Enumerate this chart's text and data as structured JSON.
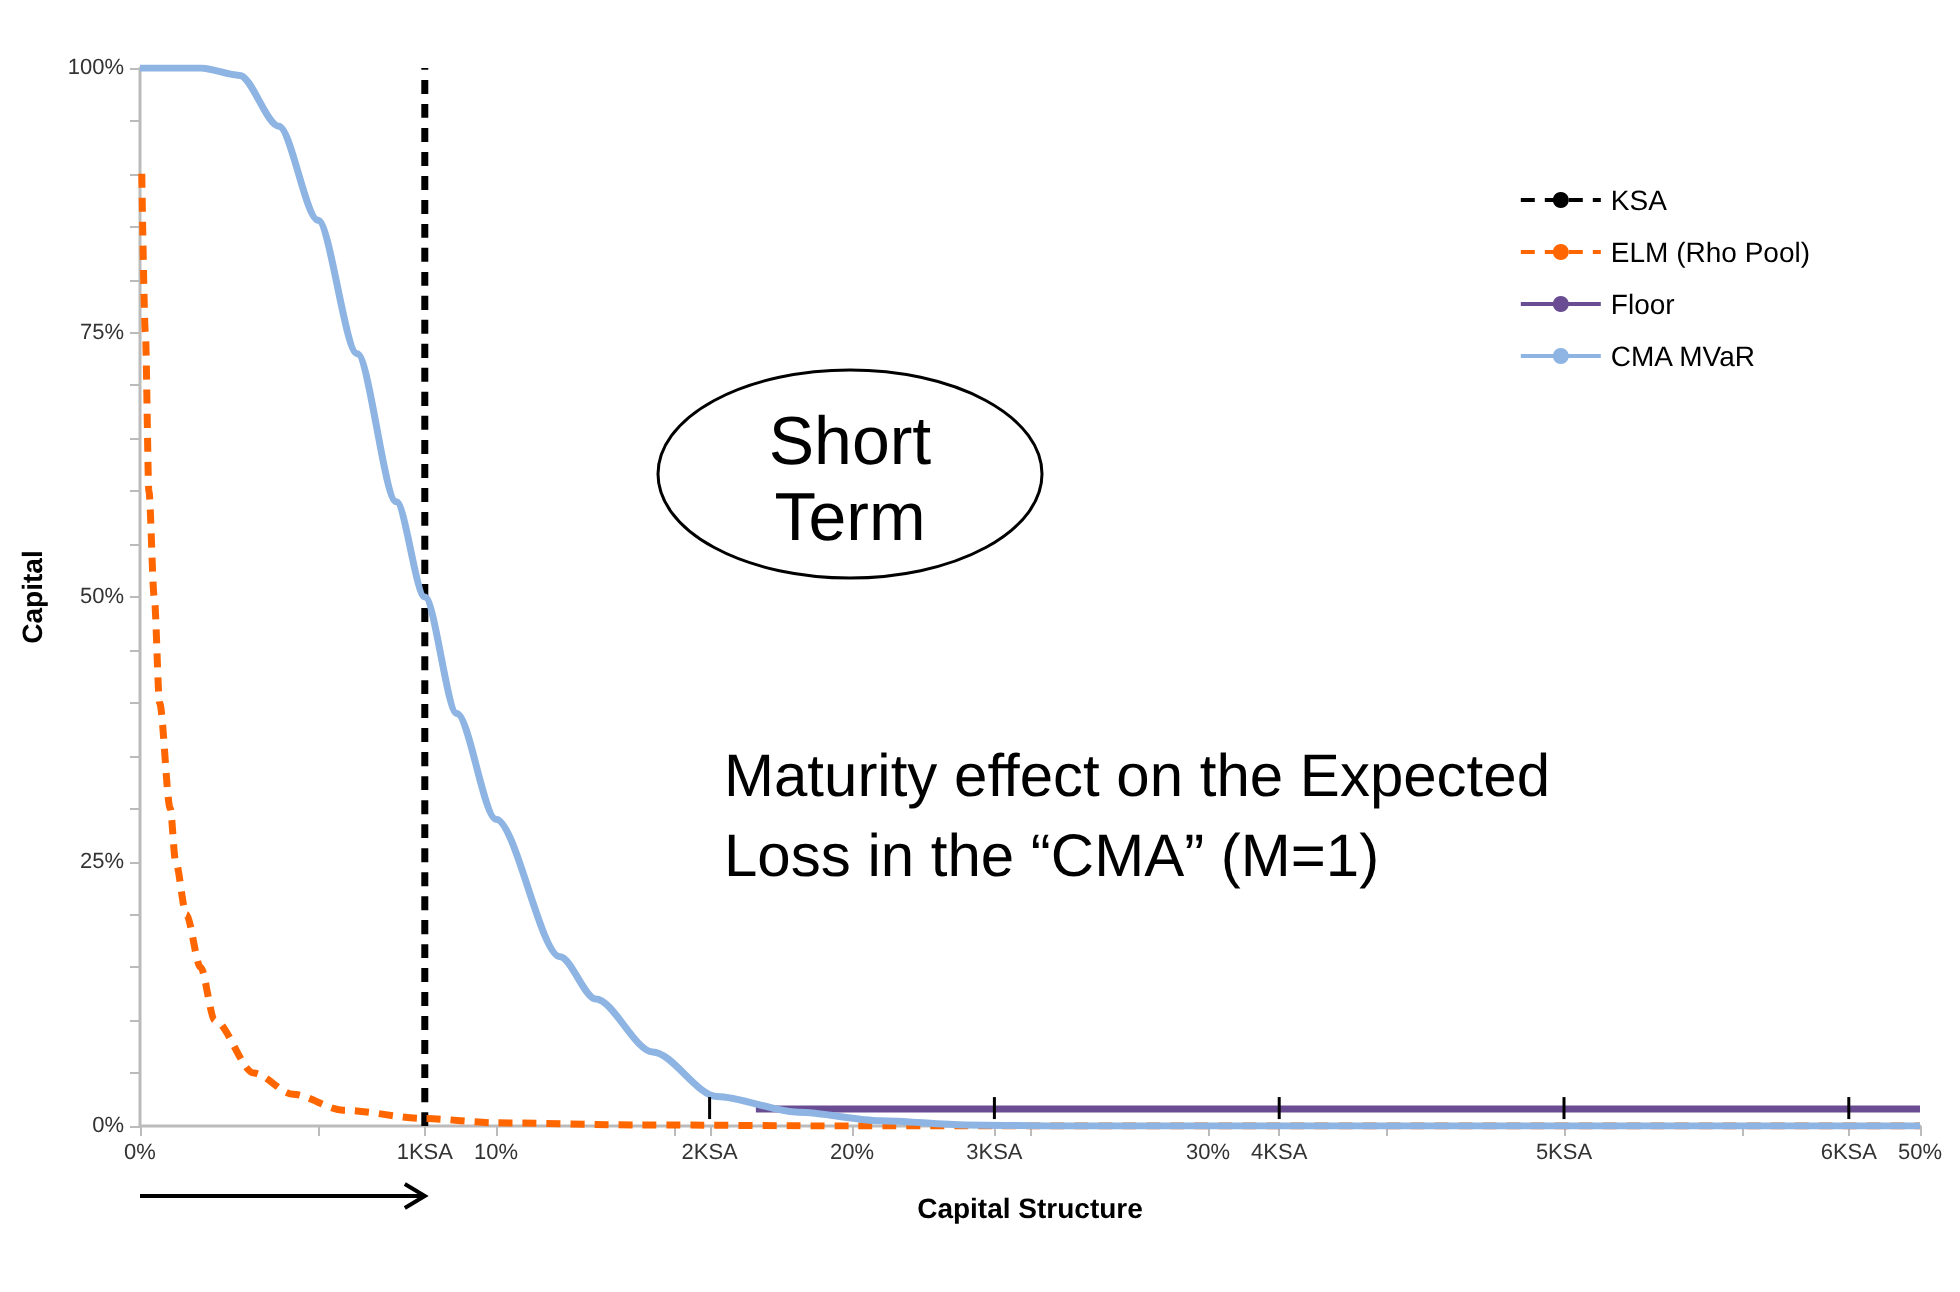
{
  "chart_data": {
    "type": "line",
    "xlabel": "Capital Structure",
    "ylabel": "Capital",
    "annotations": [
      "Short Term",
      "Maturity effect on the Expected Loss in the “CMA” (M=1)"
    ],
    "xlim": [
      0,
      50
    ],
    "xticks": [
      {
        "value": 0,
        "label": "0%"
      },
      {
        "value": 5,
        "label": null
      },
      {
        "value": 10,
        "label": "10%"
      },
      {
        "value": 15,
        "label": null
      },
      {
        "value": 20,
        "label": "20%"
      },
      {
        "value": 25,
        "label": null
      },
      {
        "value": 30,
        "label": "30%"
      },
      {
        "value": 35,
        "label": null
      },
      {
        "value": 40,
        "label": null
      },
      {
        "value": 45,
        "label": null
      },
      {
        "value": 50,
        "label": "50%"
      }
    ],
    "x2lim": [
      0,
      6.25
    ],
    "x2ticks": [
      {
        "value": 1,
        "label": "1KSA"
      },
      {
        "value": 2,
        "label": "2KSA"
      },
      {
        "value": 3,
        "label": "3KSA"
      },
      {
        "value": 4,
        "label": "4KSA"
      },
      {
        "value": 5,
        "label": "5KSA"
      },
      {
        "value": 6,
        "label": "6KSA"
      }
    ],
    "ylim": [
      0,
      100
    ],
    "yticks": [
      {
        "value": 0,
        "label": "0%"
      },
      {
        "value": 5,
        "label": null
      },
      {
        "value": 10,
        "label": null
      },
      {
        "value": 15,
        "label": null
      },
      {
        "value": 20,
        "label": null
      },
      {
        "value": 25,
        "label": "25%"
      },
      {
        "value": 30,
        "label": null
      },
      {
        "value": 35,
        "label": null
      },
      {
        "value": 40,
        "label": null
      },
      {
        "value": 45,
        "label": null
      },
      {
        "value": 50,
        "label": "50%"
      },
      {
        "value": 55,
        "label": null
      },
      {
        "value": 60,
        "label": null
      },
      {
        "value": 65,
        "label": null
      },
      {
        "value": 70,
        "label": null
      },
      {
        "value": 75,
        "label": "75%"
      },
      {
        "value": 80,
        "label": null
      },
      {
        "value": 85,
        "label": null
      },
      {
        "value": 90,
        "label": null
      },
      {
        "value": 95,
        "label": null
      },
      {
        "value": 100,
        "label": "100%"
      }
    ],
    "grid": false,
    "legend": "top right",
    "marker": "none",
    "series": [
      {
        "name": "KSA",
        "color": "#000000",
        "line_style": "dashed",
        "x": [
          8,
          8
        ],
        "values": [
          0,
          100
        ]
      },
      {
        "name": "ELM (Rho Pool)",
        "color": "#ff6600",
        "line_style": "dashed",
        "x": [
          0.05,
          0.15,
          0.25,
          0.4,
          0.55,
          0.85,
          1.0,
          1.3,
          1.7,
          2.1,
          3.2,
          4.3,
          5.7,
          8,
          10,
          14,
          20,
          50
        ],
        "values": [
          90,
          75,
          60,
          50,
          40,
          30,
          25,
          20,
          15,
          10,
          5,
          3,
          1.5,
          0.7,
          0.3,
          0.1,
          0,
          0
        ]
      },
      {
        "name": "Floor",
        "color": "#6a4c93",
        "line_style": "solid",
        "x": [
          17.3,
          50
        ],
        "values": [
          1.6,
          1.6
        ]
      },
      {
        "name": "CMA MVaR",
        "color": "#8db4e2",
        "line_style": "solid",
        "x": [
          0,
          1.7,
          2.8,
          3.9,
          5,
          6.1,
          7.2,
          8,
          8.9,
          10,
          11.8,
          12.8,
          14.4,
          16.2,
          18.5,
          20.8,
          23.2,
          26,
          50
        ],
        "values": [
          100,
          100,
          99.3,
          94.5,
          85.6,
          73,
          59,
          50,
          39,
          29,
          16,
          12,
          7,
          2.8,
          1.3,
          0.5,
          0.1,
          0,
          0
        ]
      }
    ]
  }
}
